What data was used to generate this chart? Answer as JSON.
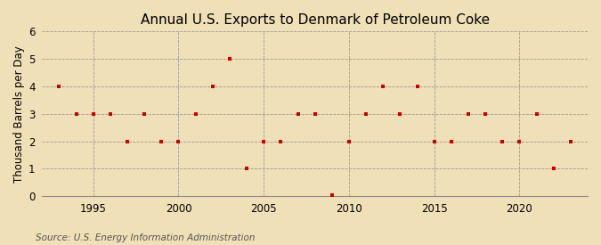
{
  "title": "Annual U.S. Exports to Denmark of Petroleum Coke",
  "ylabel": "Thousand Barrels per Day",
  "source": "Source: U.S. Energy Information Administration",
  "background_color": "#f0e0b8",
  "plot_background_color": "#f0e0b8",
  "marker_color": "#cc0000",
  "grid_color": "#999999",
  "years": [
    1993,
    1994,
    1995,
    1996,
    1997,
    1998,
    1999,
    2000,
    2001,
    2002,
    2003,
    2004,
    2005,
    2006,
    2007,
    2008,
    2009,
    2010,
    2011,
    2012,
    2013,
    2014,
    2015,
    2016,
    2017,
    2018,
    2019,
    2020,
    2021,
    2022,
    2023
  ],
  "values": [
    4,
    3,
    3,
    3,
    2,
    3,
    2,
    2,
    3,
    4,
    5,
    1,
    2,
    2,
    3,
    3,
    0.05,
    2,
    3,
    4,
    3,
    4,
    2,
    2,
    3,
    3,
    2,
    2,
    3,
    1,
    2
  ],
  "ylim": [
    0,
    6
  ],
  "yticks": [
    0,
    1,
    2,
    3,
    4,
    5,
    6
  ],
  "xlim": [
    1992,
    2024
  ],
  "xticks": [
    1995,
    2000,
    2005,
    2010,
    2015,
    2020
  ],
  "title_fontsize": 11,
  "label_fontsize": 8.5,
  "tick_fontsize": 8.5,
  "source_fontsize": 7.5
}
